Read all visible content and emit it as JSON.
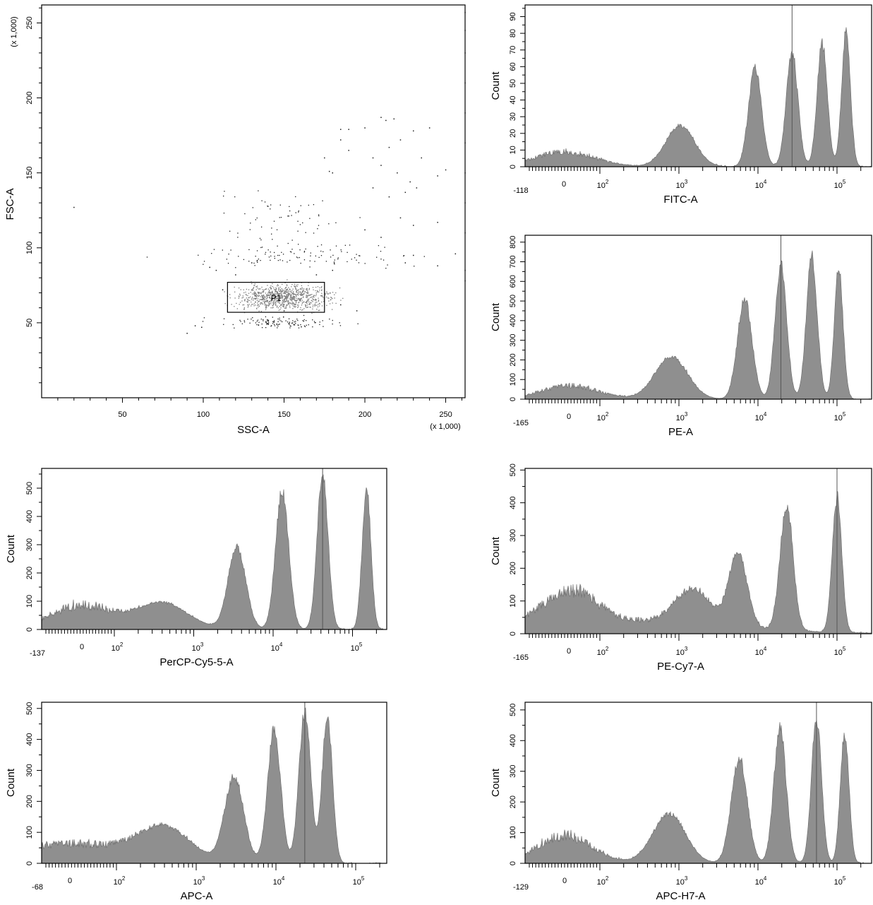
{
  "chart_data": [
    {
      "type": "scatter",
      "id": "ssc-fsc",
      "xlabel": "SSC-A",
      "ylabel": "FSC-A",
      "x_multiplier": "(x 1,000)",
      "y_multiplier": "(x 1,000)",
      "xlim": [
        0,
        262
      ],
      "ylim": [
        0,
        262
      ],
      "xticks": [
        50,
        100,
        150,
        200,
        250
      ],
      "yticks": [
        50,
        100,
        150,
        200,
        250
      ],
      "gate": {
        "name": "P1",
        "x": [
          115,
          175
        ],
        "y": [
          57,
          77
        ]
      },
      "clusters": [
        {
          "center": [
            150,
            67
          ],
          "spread": [
            14,
            4
          ],
          "count": 900,
          "tone": "grey"
        },
        {
          "center": [
            145,
            50
          ],
          "spread": [
            18,
            2
          ],
          "count": 120,
          "tone": "dark"
        },
        {
          "center": [
            160,
            95
          ],
          "spread": [
            35,
            4
          ],
          "count": 110,
          "tone": "dark"
        },
        {
          "center": [
            148,
            120
          ],
          "spread": [
            18,
            9
          ],
          "count": 60,
          "tone": "dark"
        }
      ],
      "points": [
        [
          20,
          127
        ],
        [
          90,
          43
        ],
        [
          95,
          48
        ],
        [
          99,
          47
        ],
        [
          104,
          87
        ],
        [
          108,
          85
        ],
        [
          112,
          72
        ],
        [
          178,
          151
        ],
        [
          185,
          179
        ],
        [
          190,
          179
        ],
        [
          200,
          180
        ],
        [
          210,
          187
        ],
        [
          213,
          185
        ],
        [
          218,
          186
        ],
        [
          222,
          172
        ],
        [
          205,
          160
        ],
        [
          215,
          167
        ],
        [
          210,
          155
        ],
        [
          220,
          150
        ],
        [
          228,
          144
        ],
        [
          235,
          160
        ],
        [
          245,
          148
        ],
        [
          250,
          152
        ],
        [
          240,
          180
        ],
        [
          230,
          178
        ],
        [
          185,
          172
        ],
        [
          190,
          165
        ],
        [
          175,
          160
        ],
        [
          180,
          150
        ],
        [
          205,
          140
        ],
        [
          215,
          134
        ],
        [
          225,
          137
        ],
        [
          232,
          140
        ],
        [
          222,
          120
        ],
        [
          230,
          115
        ],
        [
          245,
          117
        ],
        [
          200,
          112
        ],
        [
          210,
          107
        ],
        [
          230,
          95
        ],
        [
          245,
          88
        ],
        [
          256,
          96
        ],
        [
          262,
          110
        ],
        [
          262,
          130
        ],
        [
          262,
          150
        ],
        [
          262,
          170
        ],
        [
          262,
          190
        ],
        [
          262,
          210
        ],
        [
          262,
          230
        ],
        [
          262,
          245
        ],
        [
          262,
          257
        ],
        [
          262,
          85
        ],
        [
          262,
          78
        ],
        [
          225,
          90
        ],
        [
          180,
          85
        ],
        [
          170,
          82
        ],
        [
          185,
          62
        ],
        [
          195,
          58
        ],
        [
          150,
          58
        ],
        [
          130,
          90
        ],
        [
          120,
          82
        ]
      ]
    },
    {
      "type": "area",
      "id": "fitc",
      "xlabel": "FITC-A",
      "ylabel": "Count",
      "neg_label": "-118",
      "yticks": [
        0,
        10,
        20,
        30,
        40,
        50,
        60,
        70,
        80,
        90
      ],
      "ymax": 97,
      "peaks": [
        {
          "center": 2.2,
          "width": 0.35,
          "height": 9,
          "noise": true
        },
        {
          "center": 1040,
          "width": 0.04,
          "height": 25
        },
        {
          "center": 9200,
          "width": 0.018,
          "height": 60
        },
        {
          "center": 27000,
          "width": 0.016,
          "height": 70
        },
        {
          "center": 65000,
          "width": 0.014,
          "height": 76
        },
        {
          "center": 130000,
          "width": 0.012,
          "height": 82
        }
      ],
      "spike": 27000
    },
    {
      "type": "area",
      "id": "pe",
      "xlabel": "PE-A",
      "ylabel": "Count",
      "neg_label": "-165",
      "yticks": [
        0,
        100,
        200,
        300,
        400,
        500,
        600,
        700,
        800
      ],
      "ymax": 835,
      "peaks": [
        {
          "center": 2.3,
          "width": 0.38,
          "height": 70,
          "noise": true
        },
        {
          "center": 800,
          "width": 0.045,
          "height": 220
        },
        {
          "center": 6800,
          "width": 0.02,
          "height": 520
        },
        {
          "center": 19500,
          "width": 0.016,
          "height": 700
        },
        {
          "center": 48000,
          "width": 0.015,
          "height": 740
        },
        {
          "center": 105000,
          "width": 0.012,
          "height": 680
        }
      ],
      "spike": 19500
    },
    {
      "type": "area",
      "id": "percp",
      "xlabel": "PerCP-Cy5-5-A",
      "ylabel": "Count",
      "neg_label": "-137",
      "yticks": [
        0,
        100,
        200,
        300,
        400,
        500
      ],
      "ymax": 570,
      "peaks": [
        {
          "center": 1.8,
          "width": 0.4,
          "height": 90,
          "noise": true
        },
        {
          "center": 400,
          "width": 0.07,
          "height": 95
        },
        {
          "center": 3500,
          "width": 0.024,
          "height": 300
        },
        {
          "center": 13000,
          "width": 0.018,
          "height": 500
        },
        {
          "center": 42000,
          "width": 0.015,
          "height": 560
        },
        {
          "center": 150000,
          "width": 0.012,
          "height": 510
        }
      ],
      "spike": 42000
    },
    {
      "type": "area",
      "id": "pecy7",
      "xlabel": "PE-Cy7-A",
      "ylabel": "Count",
      "neg_label": "-165",
      "yticks": [
        0,
        100,
        200,
        300,
        400,
        500
      ],
      "ymax": 505,
      "peaks": [
        {
          "center": 1.9,
          "width": 0.35,
          "height": 100,
          "noise": true
        },
        {
          "center": 130,
          "width": 0.3,
          "height": 40,
          "noise": true
        },
        {
          "center": 1500,
          "width": 0.05,
          "height": 110
        },
        {
          "center": 5600,
          "width": 0.025,
          "height": 230
        },
        {
          "center": 23000,
          "width": 0.018,
          "height": 390
        },
        {
          "center": 100000,
          "width": 0.013,
          "height": 420
        }
      ],
      "spike": 100000
    },
    {
      "type": "area",
      "id": "apc",
      "xlabel": "APC-A",
      "ylabel": "Count",
      "neg_label": "-68",
      "yticks": [
        0,
        100,
        200,
        300,
        400,
        500
      ],
      "ymax": 520,
      "peaks": [
        {
          "center": 3.5,
          "width": 0.55,
          "height": 65,
          "noise": true
        },
        {
          "center": 400,
          "width": 0.07,
          "height": 105
        },
        {
          "center": 3000,
          "width": 0.026,
          "height": 280
        },
        {
          "center": 9500,
          "width": 0.018,
          "height": 440
        },
        {
          "center": 23000,
          "width": 0.016,
          "height": 500
        },
        {
          "center": 44000,
          "width": 0.014,
          "height": 490
        }
      ],
      "spike": 23000
    },
    {
      "type": "area",
      "id": "apch7",
      "xlabel": "APC-H7-A",
      "ylabel": "Count",
      "neg_label": "-129",
      "yticks": [
        0,
        100,
        200,
        300,
        400,
        500
      ],
      "ymax": 525,
      "peaks": [
        {
          "center": 1.2,
          "width": 0.32,
          "height": 95,
          "noise": true
        },
        {
          "center": 750,
          "width": 0.045,
          "height": 165
        },
        {
          "center": 5800,
          "width": 0.022,
          "height": 350
        },
        {
          "center": 19000,
          "width": 0.017,
          "height": 450
        },
        {
          "center": 55000,
          "width": 0.014,
          "height": 480
        },
        {
          "center": 125000,
          "width": 0.012,
          "height": 430
        }
      ],
      "spike": 55000
    }
  ]
}
